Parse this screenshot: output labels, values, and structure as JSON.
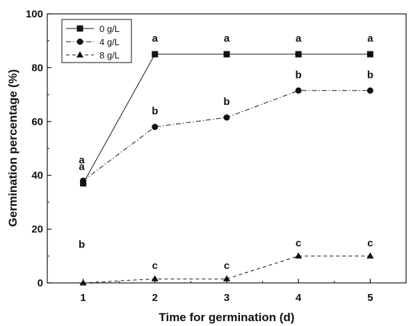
{
  "chart_data": {
    "type": "line",
    "xlabel": "Time for germination (d)",
    "ylabel": "Germination percentage (%)",
    "x": [
      1,
      2,
      3,
      4,
      5
    ],
    "xlim": [
      0.5,
      5.5
    ],
    "ylim": [
      0,
      100
    ],
    "xticks": [
      1,
      2,
      3,
      4,
      5
    ],
    "yticks": [
      0,
      20,
      40,
      60,
      80,
      100
    ],
    "grid": false,
    "legend_position": "top-left",
    "series": [
      {
        "name": "0 g/L",
        "values": [
          37,
          85,
          85,
          85,
          85
        ],
        "marker": "square",
        "line": "solid",
        "labels": [
          "a",
          "a",
          "a",
          "a",
          "a"
        ]
      },
      {
        "name": "4 g/L",
        "values": [
          38,
          58,
          61.5,
          71.5,
          71.5
        ],
        "marker": "circle",
        "line": "dashdot",
        "labels": [
          "a",
          "b",
          "b",
          "b",
          "b"
        ]
      },
      {
        "name": "8 g/L",
        "values": [
          0,
          1.5,
          1.5,
          10,
          10
        ],
        "marker": "triangle",
        "line": "dashed",
        "labels": [
          "b",
          "c",
          "c",
          "c",
          "c"
        ]
      }
    ]
  }
}
